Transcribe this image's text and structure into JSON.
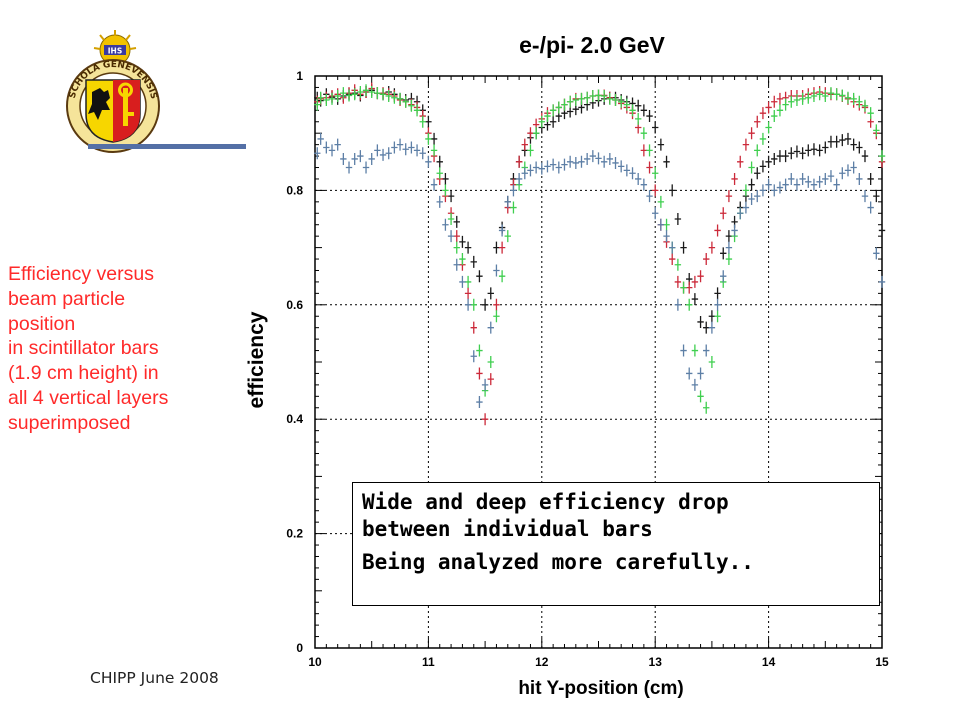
{
  "side_note": {
    "lines": [
      "Efficiency versus",
      "beam particle",
      "position",
      "in scintillator bars",
      "(1.9 cm height) in",
      "all 4 vertical layers",
      "superimposed"
    ],
    "color": "#ff2a2a"
  },
  "footer": {
    "text": "CHIPP June 2008"
  },
  "logo": {
    "ring_text": "SCHOLA GENEVENSIS",
    "motto": "IHS"
  },
  "callout": {
    "line1": "Wide and deep efficiency drop",
    "line2": "between individual bars",
    "line3": "Being analyzed more carefully.."
  },
  "chart_data": {
    "type": "scatter",
    "title": "e-/pi- 2.0 GeV",
    "xlabel": "hit Y-position (cm)",
    "ylabel": "efficiency",
    "xlim": [
      10,
      15
    ],
    "ylim": [
      0,
      1
    ],
    "xticks": [
      "10",
      "11",
      "12",
      "13",
      "14",
      "15"
    ],
    "yticks": [
      "0",
      "0.2",
      "0.4",
      "0.6",
      "0.8",
      "1"
    ],
    "grid": true,
    "marker": "cross with error bars",
    "colors": {
      "black": "#1a1a1a",
      "red": "#cc2a3a",
      "green": "#3fcf4f",
      "blue": "#5d7fa6"
    },
    "series": [
      {
        "color": "black",
        "x": [
          10.02,
          10.05,
          10.1,
          10.15,
          10.2,
          10.25,
          10.3,
          10.35,
          10.4,
          10.45,
          10.5,
          10.55,
          10.6,
          10.65,
          10.7,
          10.75,
          10.8,
          10.85,
          10.9,
          10.95,
          11.0,
          11.05,
          11.1,
          11.15,
          11.2,
          11.25,
          11.3,
          11.35,
          11.4,
          11.45,
          11.5,
          11.55,
          11.6,
          11.65,
          11.7,
          11.75,
          11.8,
          11.85,
          11.9,
          11.95,
          12.0,
          12.05,
          12.1,
          12.15,
          12.2,
          12.25,
          12.3,
          12.35,
          12.4,
          12.45,
          12.5,
          12.55,
          12.6,
          12.65,
          12.7,
          12.75,
          12.8,
          12.85,
          12.9,
          12.95,
          13.0,
          13.05,
          13.1,
          13.15,
          13.2,
          13.25,
          13.3,
          13.35,
          13.4,
          13.45,
          13.5,
          13.55,
          13.6,
          13.65,
          13.7,
          13.75,
          13.8,
          13.85,
          13.9,
          13.95,
          14.0,
          14.05,
          14.1,
          14.15,
          14.2,
          14.25,
          14.3,
          14.35,
          14.4,
          14.45,
          14.5,
          14.55,
          14.6,
          14.65,
          14.7,
          14.75,
          14.8,
          14.85,
          14.9,
          14.95,
          15.0
        ],
        "y": [
          0.962,
          0.957,
          0.968,
          0.963,
          0.96,
          0.965,
          0.968,
          0.97,
          0.966,
          0.972,
          0.975,
          0.97,
          0.968,
          0.972,
          0.968,
          0.96,
          0.958,
          0.96,
          0.955,
          0.94,
          0.92,
          0.89,
          0.85,
          0.82,
          0.79,
          0.745,
          0.71,
          0.7,
          0.675,
          0.65,
          0.6,
          0.62,
          0.7,
          0.735,
          0.78,
          0.82,
          0.85,
          0.87,
          0.892,
          0.9,
          0.91,
          0.915,
          0.92,
          0.93,
          0.935,
          0.938,
          0.942,
          0.945,
          0.95,
          0.953,
          0.957,
          0.96,
          0.962,
          0.962,
          0.958,
          0.955,
          0.952,
          0.948,
          0.94,
          0.93,
          0.91,
          0.88,
          0.85,
          0.8,
          0.75,
          0.7,
          0.645,
          0.61,
          0.57,
          0.56,
          0.58,
          0.62,
          0.69,
          0.72,
          0.745,
          0.77,
          0.79,
          0.81,
          0.83,
          0.842,
          0.85,
          0.855,
          0.86,
          0.86,
          0.865,
          0.868,
          0.865,
          0.87,
          0.872,
          0.87,
          0.875,
          0.885,
          0.885,
          0.888,
          0.89,
          0.88,
          0.875,
          0.86,
          0.82,
          0.79,
          0.73
        ]
      },
      {
        "color": "red",
        "x": [
          10.02,
          10.05,
          10.1,
          10.15,
          10.2,
          10.25,
          10.3,
          10.35,
          10.4,
          10.45,
          10.5,
          10.55,
          10.6,
          10.65,
          10.7,
          10.75,
          10.8,
          10.85,
          10.9,
          10.95,
          11.0,
          11.05,
          11.1,
          11.15,
          11.2,
          11.25,
          11.3,
          11.35,
          11.4,
          11.45,
          11.5,
          11.55,
          11.6,
          11.65,
          11.7,
          11.75,
          11.8,
          11.85,
          11.9,
          11.95,
          12.0,
          12.05,
          12.1,
          12.15,
          12.2,
          12.25,
          12.3,
          12.35,
          12.4,
          12.45,
          12.5,
          12.55,
          12.6,
          12.65,
          12.7,
          12.75,
          12.8,
          12.85,
          12.9,
          12.95,
          13.0,
          13.05,
          13.1,
          13.15,
          13.2,
          13.25,
          13.3,
          13.35,
          13.4,
          13.45,
          13.5,
          13.55,
          13.6,
          13.65,
          13.7,
          13.75,
          13.8,
          13.85,
          13.9,
          13.95,
          14.0,
          14.05,
          14.1,
          14.15,
          14.2,
          14.25,
          14.3,
          14.35,
          14.4,
          14.45,
          14.5,
          14.55,
          14.6,
          14.65,
          14.7,
          14.75,
          14.8,
          14.85,
          14.9,
          14.95,
          15.0
        ],
        "y": [
          0.955,
          0.96,
          0.962,
          0.965,
          0.968,
          0.962,
          0.97,
          0.975,
          0.968,
          0.972,
          0.978,
          0.97,
          0.97,
          0.968,
          0.965,
          0.958,
          0.955,
          0.95,
          0.945,
          0.93,
          0.9,
          0.86,
          0.82,
          0.79,
          0.76,
          0.72,
          0.67,
          0.62,
          0.56,
          0.48,
          0.4,
          0.47,
          0.6,
          0.7,
          0.77,
          0.81,
          0.85,
          0.88,
          0.9,
          0.915,
          0.925,
          0.935,
          0.94,
          0.945,
          0.95,
          0.955,
          0.96,
          0.96,
          0.962,
          0.965,
          0.966,
          0.966,
          0.962,
          0.958,
          0.952,
          0.945,
          0.935,
          0.91,
          0.87,
          0.84,
          0.8,
          0.74,
          0.71,
          0.68,
          0.64,
          0.63,
          0.63,
          0.64,
          0.65,
          0.68,
          0.7,
          0.73,
          0.76,
          0.79,
          0.82,
          0.85,
          0.88,
          0.9,
          0.92,
          0.935,
          0.945,
          0.955,
          0.96,
          0.962,
          0.965,
          0.965,
          0.965,
          0.968,
          0.97,
          0.972,
          0.97,
          0.968,
          0.968,
          0.965,
          0.96,
          0.955,
          0.95,
          0.945,
          0.92,
          0.9,
          0.85
        ]
      },
      {
        "color": "green",
        "x": [
          10.02,
          10.05,
          10.1,
          10.15,
          10.2,
          10.25,
          10.3,
          10.35,
          10.4,
          10.45,
          10.5,
          10.55,
          10.6,
          10.65,
          10.7,
          10.75,
          10.8,
          10.85,
          10.9,
          10.95,
          11.0,
          11.05,
          11.1,
          11.15,
          11.2,
          11.25,
          11.3,
          11.35,
          11.4,
          11.45,
          11.5,
          11.55,
          11.6,
          11.65,
          11.7,
          11.75,
          11.8,
          11.85,
          11.9,
          11.95,
          12.0,
          12.05,
          12.1,
          12.15,
          12.2,
          12.25,
          12.3,
          12.35,
          12.4,
          12.45,
          12.5,
          12.55,
          12.6,
          12.65,
          12.7,
          12.75,
          12.8,
          12.85,
          12.9,
          12.95,
          13.0,
          13.05,
          13.1,
          13.15,
          13.2,
          13.25,
          13.3,
          13.35,
          13.4,
          13.45,
          13.5,
          13.55,
          13.6,
          13.65,
          13.7,
          13.75,
          13.8,
          13.85,
          13.9,
          13.95,
          14.0,
          14.05,
          14.1,
          14.15,
          14.2,
          14.25,
          14.3,
          14.35,
          14.4,
          14.45,
          14.5,
          14.55,
          14.6,
          14.65,
          14.7,
          14.75,
          14.8,
          14.85,
          14.9,
          14.95,
          15.0
        ],
        "y": [
          0.95,
          0.962,
          0.958,
          0.96,
          0.965,
          0.97,
          0.966,
          0.968,
          0.972,
          0.975,
          0.972,
          0.97,
          0.968,
          0.965,
          0.962,
          0.96,
          0.955,
          0.948,
          0.94,
          0.92,
          0.89,
          0.87,
          0.83,
          0.8,
          0.75,
          0.7,
          0.68,
          0.64,
          0.6,
          0.52,
          0.45,
          0.5,
          0.58,
          0.65,
          0.72,
          0.77,
          0.81,
          0.84,
          0.87,
          0.9,
          0.92,
          0.93,
          0.94,
          0.945,
          0.95,
          0.955,
          0.958,
          0.96,
          0.962,
          0.965,
          0.966,
          0.965,
          0.96,
          0.958,
          0.955,
          0.95,
          0.94,
          0.925,
          0.9,
          0.87,
          0.83,
          0.78,
          0.74,
          0.7,
          0.67,
          0.63,
          0.6,
          0.52,
          0.44,
          0.42,
          0.5,
          0.58,
          0.64,
          0.68,
          0.72,
          0.76,
          0.8,
          0.84,
          0.87,
          0.89,
          0.91,
          0.93,
          0.94,
          0.95,
          0.955,
          0.958,
          0.96,
          0.962,
          0.965,
          0.968,
          0.965,
          0.97,
          0.968,
          0.966,
          0.962,
          0.96,
          0.955,
          0.948,
          0.935,
          0.905,
          0.86
        ]
      },
      {
        "color": "blue",
        "x": [
          10.02,
          10.05,
          10.1,
          10.15,
          10.2,
          10.25,
          10.3,
          10.35,
          10.4,
          10.45,
          10.5,
          10.55,
          10.6,
          10.65,
          10.7,
          10.75,
          10.8,
          10.85,
          10.9,
          10.95,
          11.0,
          11.05,
          11.1,
          11.15,
          11.2,
          11.25,
          11.3,
          11.35,
          11.4,
          11.45,
          11.5,
          11.55,
          11.6,
          11.65,
          11.7,
          11.75,
          11.8,
          11.85,
          11.9,
          11.95,
          12.0,
          12.05,
          12.1,
          12.15,
          12.2,
          12.25,
          12.3,
          12.35,
          12.4,
          12.45,
          12.5,
          12.55,
          12.6,
          12.65,
          12.7,
          12.75,
          12.8,
          12.85,
          12.9,
          12.95,
          13.0,
          13.05,
          13.1,
          13.15,
          13.2,
          13.25,
          13.3,
          13.35,
          13.4,
          13.45,
          13.5,
          13.55,
          13.6,
          13.65,
          13.7,
          13.75,
          13.8,
          13.85,
          13.9,
          13.95,
          14.0,
          14.05,
          14.1,
          14.15,
          14.2,
          14.25,
          14.3,
          14.35,
          14.4,
          14.45,
          14.5,
          14.55,
          14.6,
          14.65,
          14.7,
          14.75,
          14.8,
          14.85,
          14.9,
          14.95,
          15.0
        ],
        "y": [
          0.865,
          0.89,
          0.875,
          0.87,
          0.88,
          0.855,
          0.84,
          0.855,
          0.86,
          0.84,
          0.855,
          0.87,
          0.862,
          0.865,
          0.875,
          0.88,
          0.872,
          0.875,
          0.87,
          0.865,
          0.85,
          0.81,
          0.78,
          0.74,
          0.72,
          0.67,
          0.64,
          0.6,
          0.51,
          0.43,
          0.46,
          0.56,
          0.66,
          0.73,
          0.78,
          0.8,
          0.82,
          0.83,
          0.835,
          0.84,
          0.838,
          0.842,
          0.845,
          0.84,
          0.845,
          0.85,
          0.848,
          0.85,
          0.855,
          0.86,
          0.856,
          0.85,
          0.855,
          0.848,
          0.842,
          0.835,
          0.83,
          0.82,
          0.81,
          0.79,
          0.76,
          0.74,
          0.72,
          0.7,
          0.6,
          0.52,
          0.48,
          0.46,
          0.48,
          0.52,
          0.56,
          0.6,
          0.65,
          0.7,
          0.73,
          0.76,
          0.77,
          0.785,
          0.79,
          0.8,
          0.81,
          0.8,
          0.805,
          0.81,
          0.82,
          0.81,
          0.82,
          0.815,
          0.81,
          0.815,
          0.82,
          0.825,
          0.81,
          0.83,
          0.835,
          0.84,
          0.82,
          0.79,
          0.77,
          0.69,
          0.64
        ]
      }
    ]
  }
}
